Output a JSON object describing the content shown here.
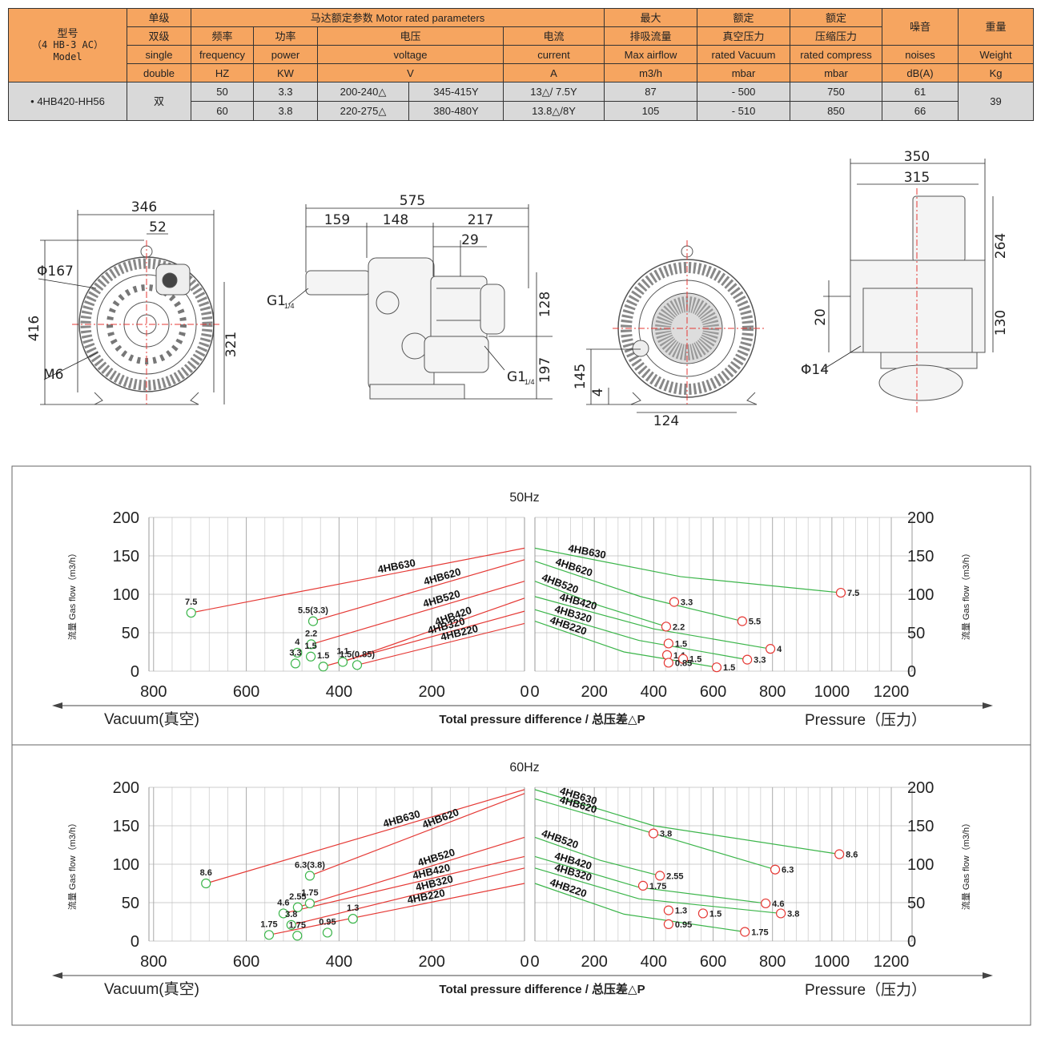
{
  "table": {
    "model_header": [
      "型号",
      "（4 HB-3 AC）",
      "Model"
    ],
    "stage_header": [
      "单级",
      "双级",
      "single",
      "double"
    ],
    "motor_header": "马达额定参数  Motor rated parameters",
    "columns": [
      {
        "zh": "频率",
        "en": "frequency",
        "unit": "HZ"
      },
      {
        "zh": "功率",
        "en": "power",
        "unit": "KW"
      },
      {
        "zh": "电压",
        "en": "voltage",
        "unit": "V"
      },
      {
        "zh": "电流",
        "en": "current",
        "unit": "A"
      },
      {
        "top": "最大",
        "zh": "排吸流量",
        "en": "Max airflow",
        "unit": "m3/h"
      },
      {
        "top": "额定",
        "zh": "真空压力",
        "en": "rated Vacuum",
        "unit": "mbar"
      },
      {
        "top": "额定",
        "zh": "压缩压力",
        "en": "rated compress",
        "unit": "mbar"
      },
      {
        "zh": "噪音",
        "en": "noises",
        "unit": "dB(A)"
      },
      {
        "zh": "重量",
        "en": "Weight",
        "unit": "Kg"
      }
    ],
    "model": "4HB420-HH56",
    "stage": "双",
    "weight": "39",
    "rows": [
      [
        "50",
        "3.3",
        "200-240△",
        "345-415Y",
        "13△/ 7.5Y",
        "87",
        "- 500",
        "750",
        "61"
      ],
      [
        "60",
        "3.8",
        "220-275△",
        "380-480Y",
        "13.8△/8Y",
        "105",
        "- 510",
        "850",
        "66"
      ]
    ]
  },
  "drawings": {
    "dimensions": [
      "346",
      "52",
      "Φ167",
      "416",
      "321",
      "M6",
      "575",
      "159",
      "148",
      "217",
      "29",
      "128",
      "197",
      "145",
      "4",
      "124",
      "350",
      "315",
      "264",
      "20",
      "130",
      "Φ14"
    ],
    "thread": {
      "main": "G1",
      "sub": "1/4"
    }
  },
  "chart_data": [
    {
      "type": "line",
      "title": "50Hz",
      "ylabel": "流量 Gas flow（m3/h）",
      "ylim": [
        0,
        200
      ],
      "yticks": [
        0,
        50,
        100,
        150,
        200
      ],
      "grid": true,
      "xlabels": {
        "vacuum": "Vacuum(真空)",
        "center": "Total pressure difference / 总压差△P",
        "pressure": "Pressure（压力）"
      },
      "vacuum": {
        "xlim": [
          810,
          0
        ],
        "xticks": [
          800,
          600,
          400,
          200,
          0
        ],
        "line_color": "#e53935",
        "point_color": "#3bb54a",
        "series": [
          {
            "name": "4HB630",
            "x": [
              719,
              0
            ],
            "values": [
              76,
              160
            ]
          },
          {
            "name": "4HB620",
            "x": [
              456,
              0
            ],
            "values": [
              65,
              145
            ]
          },
          {
            "name": "4HB520",
            "x": [
              460,
              0
            ],
            "values": [
              35,
              117
            ]
          },
          {
            "name": "4HB420",
            "x": [
              392,
              0
            ],
            "values": [
              12,
              95
            ]
          },
          {
            "name": "4HB320",
            "x": [
              434,
              0
            ],
            "values": [
              6,
              78
            ]
          },
          {
            "name": "4HB220",
            "x": [
              361,
              0
            ],
            "values": [
              8,
              62
            ]
          }
        ],
        "points": [
          {
            "x": 719,
            "y": 76,
            "label": "7.5"
          },
          {
            "x": 456,
            "y": 65,
            "label": "5.5(3.3)"
          },
          {
            "x": 460,
            "y": 35,
            "label": "2.2"
          },
          {
            "x": 490,
            "y": 24,
            "label": "4"
          },
          {
            "x": 494,
            "y": 10,
            "label": "3.3"
          },
          {
            "x": 461,
            "y": 19,
            "label": "1.5"
          },
          {
            "x": 434,
            "y": 6,
            "label": "1.5"
          },
          {
            "x": 392,
            "y": 12,
            "label": "1.1"
          },
          {
            "x": 361,
            "y": 8,
            "label": "1.5(0.85)"
          }
        ]
      },
      "pressure": {
        "xlim": [
          0,
          1270
        ],
        "xticks": [
          0,
          200,
          400,
          600,
          800,
          1000,
          1200
        ],
        "line_color": "#3bb54a",
        "point_color": "#e53935",
        "series": [
          {
            "name": "4HB630",
            "x": [
              0,
              490,
              1030
            ],
            "values": [
              160,
              123,
              102
            ]
          },
          {
            "name": "4HB620",
            "x": [
              0,
              356,
              698
            ],
            "values": [
              143,
              97,
              65
            ]
          },
          {
            "name": "4HB520",
            "x": [
              0,
              220,
              442
            ],
            "values": [
              117,
              85,
              58
            ]
          },
          {
            "name": "4HB420",
            "x": [
              0,
              400,
              793
            ],
            "values": [
              97,
              55,
              29
            ]
          },
          {
            "name": "4HB320",
            "x": [
              0,
              350,
              715
            ],
            "values": [
              80,
              40,
              15
            ]
          },
          {
            "name": "4HB220",
            "x": [
              0,
              300,
              612
            ],
            "values": [
              65,
              25,
              5
            ]
          }
        ],
        "points": [
          {
            "x": 1030,
            "y": 102,
            "label": "7.5"
          },
          {
            "x": 469,
            "y": 90,
            "label": "3.3"
          },
          {
            "x": 698,
            "y": 65,
            "label": "5.5"
          },
          {
            "x": 442,
            "y": 58,
            "label": "2.2"
          },
          {
            "x": 450,
            "y": 36,
            "label": "1.5"
          },
          {
            "x": 445,
            "y": 21,
            "label": "1.1"
          },
          {
            "x": 499,
            "y": 16,
            "label": "1.5"
          },
          {
            "x": 450,
            "y": 11,
            "label": "0.85"
          },
          {
            "x": 793,
            "y": 29,
            "label": "4"
          },
          {
            "x": 715,
            "y": 15,
            "label": "3.3"
          },
          {
            "x": 612,
            "y": 5,
            "label": "1.5"
          }
        ]
      }
    },
    {
      "type": "line",
      "title": "60Hz",
      "ylabel": "流量 Gas flow（m3/h）",
      "ylim": [
        0,
        200
      ],
      "yticks": [
        0,
        50,
        100,
        150,
        200
      ],
      "grid": true,
      "xlabels": {
        "vacuum": "Vacuum(真空)",
        "center": "Total pressure difference / 总压差△P",
        "pressure": "Pressure（压力）"
      },
      "vacuum": {
        "xlim": [
          810,
          0
        ],
        "xticks": [
          800,
          600,
          400,
          200,
          0
        ],
        "line_color": "#e53935",
        "point_color": "#3bb54a",
        "series": [
          {
            "name": "4HB630",
            "x": [
              687,
              0
            ],
            "values": [
              75,
              197
            ]
          },
          {
            "name": "4HB620",
            "x": [
              463,
              0
            ],
            "values": [
              85,
              192
            ]
          },
          {
            "name": "4HB520",
            "x": [
              489,
              0
            ],
            "values": [
              44,
              135
            ]
          },
          {
            "name": "4HB420",
            "x": [
              520,
              0
            ],
            "values": [
              36,
              110
            ]
          },
          {
            "name": "4HB320",
            "x": [
              503,
              0
            ],
            "values": [
              21,
              95
            ]
          },
          {
            "name": "4HB220",
            "x": [
              551,
              0
            ],
            "values": [
              8,
              75
            ]
          }
        ],
        "points": [
          {
            "x": 687,
            "y": 75,
            "label": "8.6"
          },
          {
            "x": 463,
            "y": 85,
            "label": "6.3(3.8)"
          },
          {
            "x": 463,
            "y": 49,
            "label": "1.75"
          },
          {
            "x": 489,
            "y": 44,
            "label": "2.55"
          },
          {
            "x": 520,
            "y": 36,
            "label": "4.6"
          },
          {
            "x": 503,
            "y": 21,
            "label": "3.8"
          },
          {
            "x": 551,
            "y": 8,
            "label": "1.75"
          },
          {
            "x": 490,
            "y": 7,
            "label": "1.75"
          },
          {
            "x": 370,
            "y": 29,
            "label": "1.3"
          },
          {
            "x": 425,
            "y": 11,
            "label": "0.95"
          }
        ]
      },
      "pressure": {
        "xlim": [
          0,
          1270
        ],
        "xticks": [
          0,
          200,
          400,
          600,
          800,
          1000,
          1200
        ],
        "line_color": "#3bb54a",
        "point_color": "#e53935",
        "series": [
          {
            "name": "4HB630",
            "x": [
              0,
              400,
              1025
            ],
            "values": [
              197,
              150,
              113
            ]
          },
          {
            "name": "4HB620",
            "x": [
              0,
              399,
              809
            ],
            "values": [
              185,
              140,
              93
            ]
          },
          {
            "name": "4HB520",
            "x": [
              0,
              220,
              421
            ],
            "values": [
              135,
              105,
              85
            ]
          },
          {
            "name": "4HB420",
            "x": [
              0,
              350,
              777
            ],
            "values": [
              110,
              70,
              49
            ]
          },
          {
            "name": "4HB320",
            "x": [
              0,
              350,
              828
            ],
            "values": [
              95,
              55,
              36
            ]
          },
          {
            "name": "4HB220",
            "x": [
              0,
              300,
              707
            ],
            "values": [
              75,
              35,
              12
            ]
          }
        ],
        "points": [
          {
            "x": 399,
            "y": 140,
            "label": "3.8"
          },
          {
            "x": 1025,
            "y": 113,
            "label": "8.6"
          },
          {
            "x": 809,
            "y": 93,
            "label": "6.3"
          },
          {
            "x": 421,
            "y": 85,
            "label": "2.55"
          },
          {
            "x": 364,
            "y": 72,
            "label": "1.75"
          },
          {
            "x": 777,
            "y": 49,
            "label": "4.6"
          },
          {
            "x": 828,
            "y": 36,
            "label": "3.8"
          },
          {
            "x": 450,
            "y": 40,
            "label": "1.3"
          },
          {
            "x": 566,
            "y": 36,
            "label": "1.5"
          },
          {
            "x": 450,
            "y": 22,
            "label": "0.95"
          },
          {
            "x": 707,
            "y": 12,
            "label": "1.75"
          }
        ]
      }
    }
  ]
}
